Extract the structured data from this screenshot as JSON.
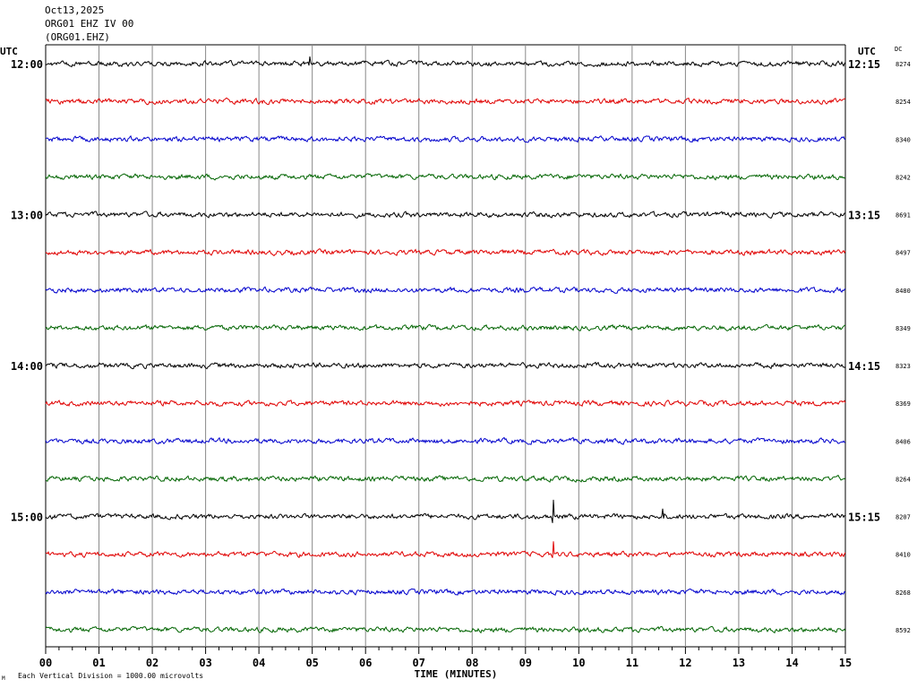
{
  "header": {
    "date": "Oct13,2025",
    "station": "ORG01 EHZ IV 00",
    "channel": "(ORG01.EHZ)"
  },
  "footer": {
    "scale_note": "Each Vertical Division = 1000.00 microvolts",
    "corner_mark": "M"
  },
  "chart_data": {
    "type": "line",
    "title": "",
    "xlabel": "TIME (MINUTES)",
    "x_ticks": [
      "00",
      "01",
      "02",
      "03",
      "04",
      "05",
      "06",
      "07",
      "08",
      "09",
      "10",
      "11",
      "12",
      "13",
      "14",
      "15"
    ],
    "xlim": [
      0,
      15
    ],
    "left_axis_label": "UTC",
    "right_axis_label": "UTC",
    "dc_label": "DC",
    "left_hour_labels": [
      "12:00",
      "13:00",
      "14:00",
      "15:00"
    ],
    "right_hour_labels": [
      "12:15",
      "13:15",
      "14:15",
      "15:15"
    ],
    "trace_colors": [
      "#000000",
      "#e00000",
      "#0000cc",
      "#006400"
    ],
    "dc_values": [
      "8274",
      "8254",
      "8340",
      "8242",
      "8691",
      "8497",
      "8480",
      "8349",
      "8323",
      "8369",
      "8406",
      "8264",
      "8207",
      "8410",
      "8268",
      "8592"
    ],
    "events": [
      {
        "trace": 0,
        "minute": 4.95,
        "amplitude": 18
      },
      {
        "trace": 12,
        "minute": 9.52,
        "amplitude": 34
      },
      {
        "trace": 12,
        "minute": 11.58,
        "amplitude": 20
      },
      {
        "trace": 13,
        "minute": 9.52,
        "amplitude": 28
      }
    ]
  }
}
